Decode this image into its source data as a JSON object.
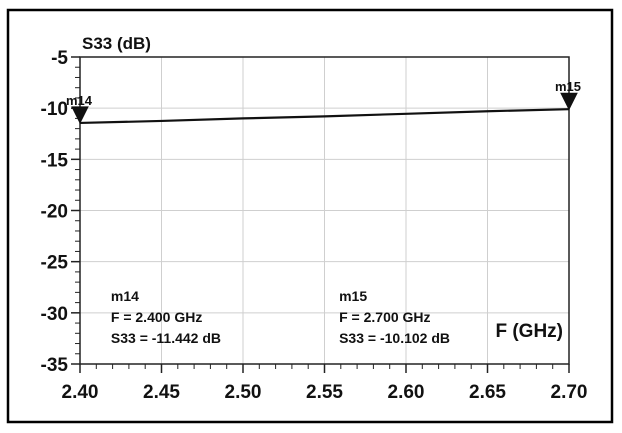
{
  "chart_data": {
    "type": "line",
    "title": "S33 (dB)",
    "xlabel": "F (GHz)",
    "ylabel": "S33 (dB)",
    "xlim": [
      2.4,
      2.7
    ],
    "ylim": [
      -35,
      -5
    ],
    "x_ticks": [
      "2.40",
      "2.45",
      "2.50",
      "2.55",
      "2.60",
      "2.65",
      "2.70"
    ],
    "y_ticks": [
      "-5",
      "-10",
      "-15",
      "-20",
      "-25",
      "-30",
      "-35"
    ],
    "grid": true,
    "series": [
      {
        "x": [
          2.4,
          2.45,
          2.5,
          2.55,
          2.6,
          2.65,
          2.7
        ],
        "y": [
          -11.442,
          -11.25,
          -11.0,
          -10.8,
          -10.55,
          -10.3,
          -10.102
        ],
        "color": "#111111"
      }
    ],
    "markers": [
      {
        "name": "m14",
        "x": 2.4,
        "y": -11.442,
        "label_side": "right",
        "readout": [
          "m14",
          "F = 2.400 GHz",
          "S33 = -11.442 dB"
        ]
      },
      {
        "name": "m15",
        "x": 2.7,
        "y": -10.102,
        "label_side": "left",
        "readout": [
          "m15",
          "F = 2.700 GHz",
          "S33 = -10.102 dB"
        ]
      }
    ]
  }
}
